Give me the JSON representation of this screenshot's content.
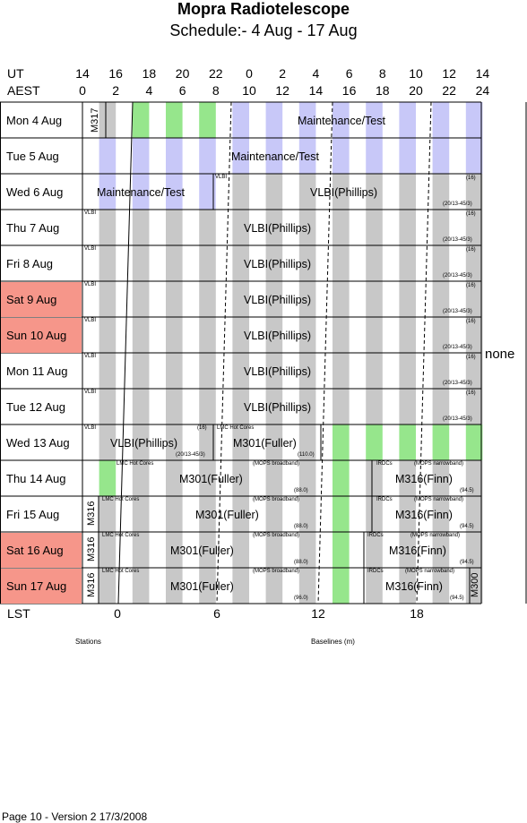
{
  "header": {
    "title": "Mopra Radiotelescope",
    "subtitle": "Schedule:- 4  Aug - 17 Aug"
  },
  "axis": {
    "ut_label": "UT",
    "aest_label": "AEST",
    "lst_label": "LST",
    "ut_ticks": [
      "14",
      "16",
      "18",
      "20",
      "22",
      "0",
      "2",
      "4",
      "6",
      "8",
      "10",
      "12",
      "14"
    ],
    "aest_ticks": [
      "0",
      "2",
      "4",
      "6",
      "8",
      "10",
      "12",
      "14",
      "16",
      "18",
      "20",
      "22",
      "24"
    ],
    "lst_ticks": [
      "0",
      "6",
      "12",
      "18"
    ],
    "lst_values": [
      0,
      6,
      12,
      18
    ]
  },
  "colors": {
    "weekend": "#f6968a",
    "gray": "#c8c8c8",
    "blue": "#c8c8f8",
    "green": "#96e68c"
  },
  "days": [
    {
      "label": "Mon   4  Aug",
      "weekend": false
    },
    {
      "label": "Tue   5  Aug",
      "weekend": false
    },
    {
      "label": "Wed   6  Aug",
      "weekend": false
    },
    {
      "label": "Thu   7  Aug",
      "weekend": false
    },
    {
      "label": "Fri    8  Aug",
      "weekend": false
    },
    {
      "label": "Sat   9  Aug",
      "weekend": true
    },
    {
      "label": "Sun  10 Aug",
      "weekend": true
    },
    {
      "label": "Mon  11 Aug",
      "weekend": false
    },
    {
      "label": "Tue   12  Aug",
      "weekend": false
    },
    {
      "label": "Wed  13 Aug",
      "weekend": false
    },
    {
      "label": "Thu   14  Aug",
      "weekend": false
    },
    {
      "label": "Fri    15  Aug",
      "weekend": false
    },
    {
      "label": "Sat   16  Aug",
      "weekend": true
    },
    {
      "label": "Sun  17  Aug",
      "weekend": true
    }
  ],
  "labels": {
    "maint": "Maintenance/Test",
    "vlbi_phillips": "VLBI(Phillips)",
    "vlbi": "VLBI",
    "m301": "M301(Fuller)",
    "m316": "M316(Finn)",
    "lmc": "LMC Hot Cores",
    "mops_bb": "(MOPS broadband)",
    "mops_nb": "(MOPS narrowband)",
    "irdcs": "IRDCs",
    "n16": "(16)",
    "n20": "(20/13-45/3)",
    "n110": "(110.0)",
    "n88": "(88.0)",
    "n96": "(96.0)",
    "n945": "(94.5)",
    "m317": "M317",
    "m316v": "M316",
    "m300": "M300",
    "none": "none"
  },
  "footer": {
    "stations": "Stations",
    "baselines": "Baselines (m)",
    "page": "Page 10 - Version 2  17/3/2008"
  }
}
